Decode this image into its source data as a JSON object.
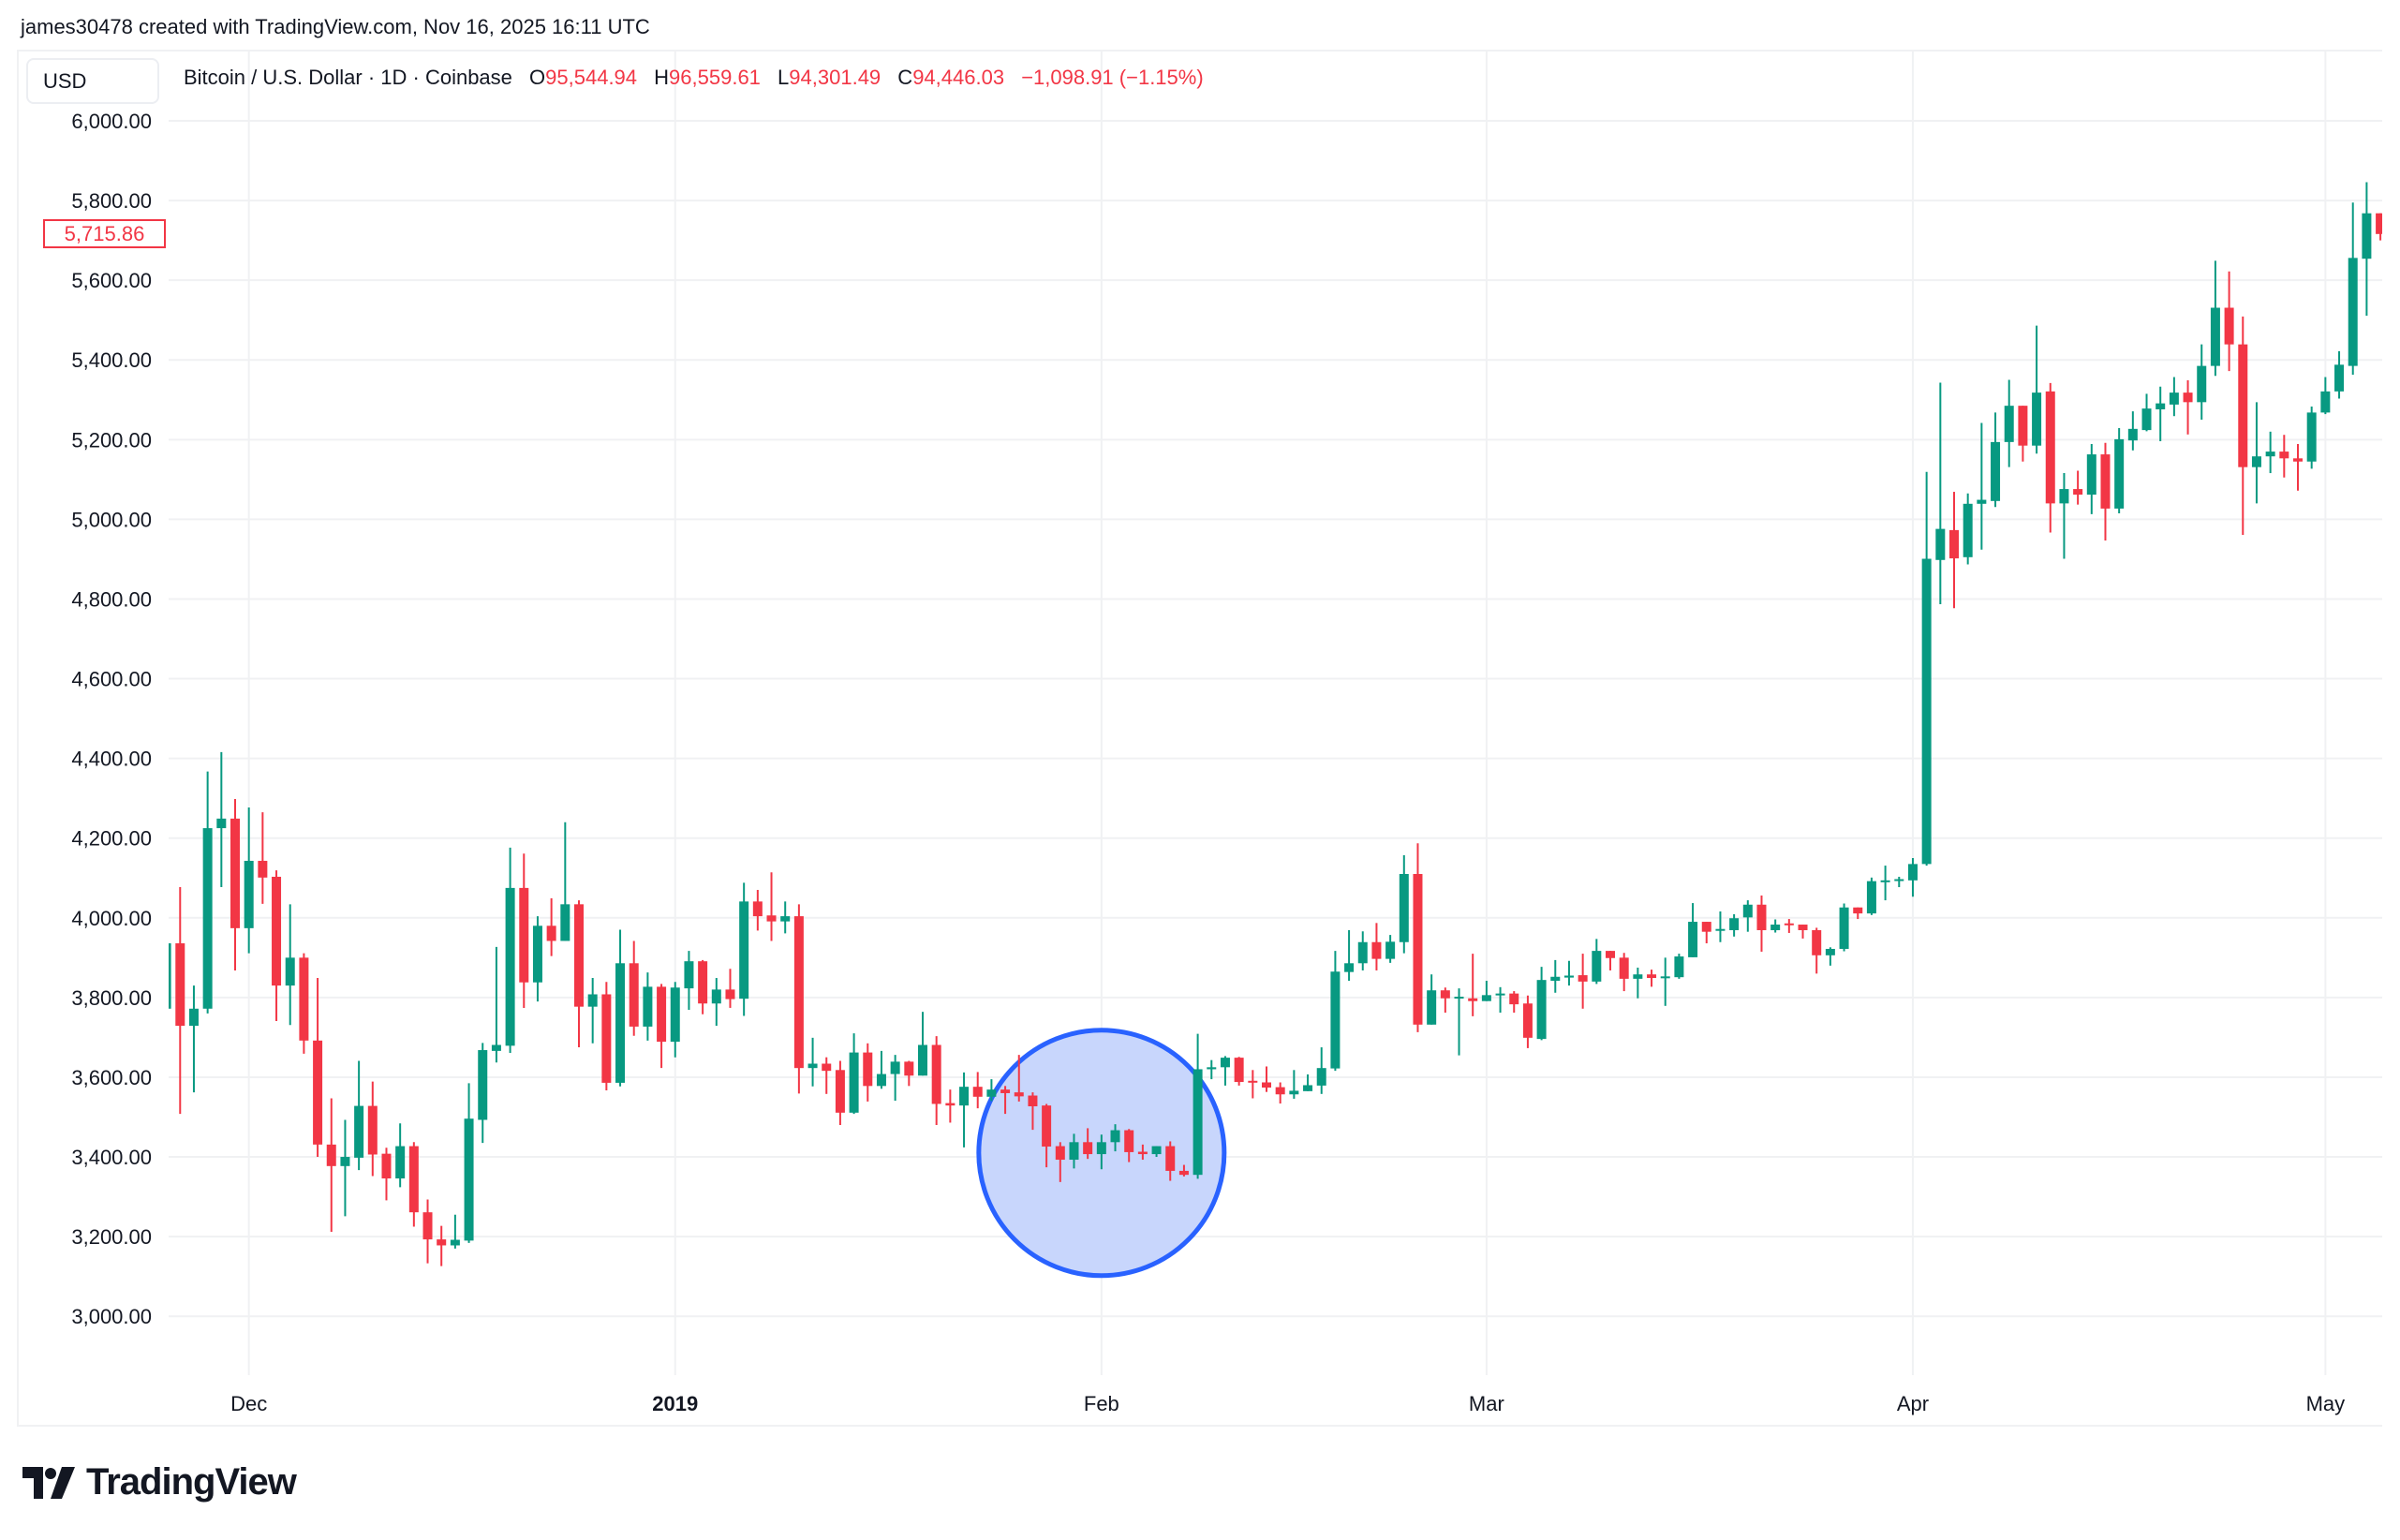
{
  "header": {
    "attribution": "james30478 created with TradingView.com, Nov 16, 2025 16:11 UTC"
  },
  "legend": {
    "currency_button": "USD",
    "title": "Bitcoin / U.S. Dollar · 1D · Coinbase",
    "o_label": "O",
    "o": "95,544.94",
    "h_label": "H",
    "h": "96,559.61",
    "l_label": "L",
    "l": "94,301.49",
    "c_label": "C",
    "c": "94,446.03",
    "change": "−1,098.91 (−1.15%)"
  },
  "price_label": "5,715.86",
  "logo": {
    "text": "TradingView",
    "icon": "tradingview-logo-icon"
  },
  "colors": {
    "up": "#089981",
    "down": "#F23645",
    "highlight_stroke": "#2962FF",
    "highlight_fill": "#C5D4FC",
    "grid": "#F0F1F3"
  },
  "chart_data": {
    "type": "candlestick",
    "title": "",
    "xlabel": "",
    "ylabel": "",
    "grid": true,
    "y_ticks": [
      6000,
      5800,
      5600,
      5400,
      5200,
      5000,
      4800,
      4600,
      4400,
      4200,
      4000,
      3800,
      3600,
      3400,
      3200,
      3000
    ],
    "y_tick_labels": [
      "6,000.00",
      "5,800.00",
      "5,600.00",
      "5,400.00",
      "5,200.00",
      "5,000.00",
      "4,800.00",
      "4,600.00",
      "4,400.00",
      "4,200.00",
      "4,000.00",
      "3,800.00",
      "3,600.00",
      "3,400.00",
      "3,200.00",
      "3,000.00"
    ],
    "x_ticks": [
      {
        "date": "2018-12-01",
        "label": "Dec",
        "bold": false
      },
      {
        "date": "2019-01-01",
        "label": "2019",
        "bold": true
      },
      {
        "date": "2019-02-01",
        "label": "Feb",
        "bold": false
      },
      {
        "date": "2019-03-01",
        "label": "Mar",
        "bold": false
      },
      {
        "date": "2019-04-01",
        "label": "Apr",
        "bold": false
      },
      {
        "date": "2019-05-01",
        "label": "May",
        "bold": false
      }
    ],
    "highlight": {
      "shape": "circle",
      "center_date": "2019-02-01",
      "center_price": 3410
    },
    "columns": [
      "date",
      "open",
      "high",
      "low",
      "close"
    ],
    "candles": [
      [
        "2018-11-25",
        3772,
        3990,
        3760,
        3936
      ],
      [
        "2018-11-26",
        3936,
        4077,
        3508,
        3729
      ],
      [
        "2018-11-27",
        3729,
        3830,
        3562,
        3772
      ],
      [
        "2018-11-28",
        3772,
        4367,
        3760,
        4225
      ],
      [
        "2018-11-29",
        4225,
        4416,
        4077,
        4249
      ],
      [
        "2018-11-30",
        4249,
        4298,
        3868,
        3974
      ],
      [
        "2018-12-01",
        3974,
        4277,
        3911,
        4143
      ],
      [
        "2018-12-02",
        4143,
        4265,
        4035,
        4101
      ],
      [
        "2018-12-03",
        4103,
        4119,
        3741,
        3830
      ],
      [
        "2018-12-04",
        3830,
        4034,
        3731,
        3900
      ],
      [
        "2018-12-05",
        3900,
        3911,
        3659,
        3692
      ],
      [
        "2018-12-06",
        3692,
        3849,
        3400,
        3431
      ],
      [
        "2018-12-07",
        3431,
        3547,
        3212,
        3377
      ],
      [
        "2018-12-08",
        3377,
        3493,
        3251,
        3400
      ],
      [
        "2018-12-09",
        3398,
        3641,
        3367,
        3528
      ],
      [
        "2018-12-10",
        3528,
        3589,
        3352,
        3406
      ],
      [
        "2018-12-11",
        3408,
        3423,
        3291,
        3346
      ],
      [
        "2018-12-12",
        3346,
        3484,
        3324,
        3427
      ],
      [
        "2018-12-13",
        3427,
        3437,
        3225,
        3261
      ],
      [
        "2018-12-14",
        3261,
        3293,
        3133,
        3193
      ],
      [
        "2018-12-15",
        3193,
        3227,
        3126,
        3178
      ],
      [
        "2018-12-16",
        3178,
        3255,
        3170,
        3192
      ],
      [
        "2018-12-17",
        3190,
        3585,
        3184,
        3496
      ],
      [
        "2018-12-18",
        3493,
        3686,
        3435,
        3668
      ],
      [
        "2018-12-19",
        3666,
        3927,
        3637,
        3681
      ],
      [
        "2018-12-20",
        3679,
        4176,
        3661,
        4075
      ],
      [
        "2018-12-21",
        4075,
        4161,
        3774,
        3838
      ],
      [
        "2018-12-22",
        3838,
        4004,
        3790,
        3980
      ],
      [
        "2018-12-23",
        3980,
        4049,
        3904,
        3942
      ],
      [
        "2018-12-24",
        3942,
        4240,
        3942,
        4034
      ],
      [
        "2018-12-25",
        4034,
        4044,
        3675,
        3777
      ],
      [
        "2018-12-26",
        3777,
        3849,
        3685,
        3808
      ],
      [
        "2018-12-27",
        3808,
        3839,
        3567,
        3586
      ],
      [
        "2018-12-28",
        3586,
        3970,
        3577,
        3886
      ],
      [
        "2018-12-29",
        3886,
        3942,
        3704,
        3727
      ],
      [
        "2018-12-30",
        3727,
        3863,
        3692,
        3827
      ],
      [
        "2018-12-31",
        3827,
        3834,
        3623,
        3689
      ],
      [
        "2019-01-01",
        3689,
        3839,
        3650,
        3825
      ],
      [
        "2019-01-02",
        3823,
        3917,
        3769,
        3891
      ],
      [
        "2019-01-03",
        3891,
        3894,
        3758,
        3785
      ],
      [
        "2019-01-04",
        3785,
        3849,
        3729,
        3820
      ],
      [
        "2019-01-05",
        3820,
        3872,
        3774,
        3796
      ],
      [
        "2019-01-06",
        3797,
        4088,
        3754,
        4041
      ],
      [
        "2019-01-07",
        4041,
        4070,
        3968,
        4004
      ],
      [
        "2019-01-08",
        4006,
        4114,
        3942,
        3991
      ],
      [
        "2019-01-09",
        3991,
        4041,
        3961,
        4004
      ],
      [
        "2019-01-10",
        4004,
        4034,
        3559,
        3623
      ],
      [
        "2019-01-11",
        3623,
        3699,
        3577,
        3634
      ],
      [
        "2019-01-12",
        3634,
        3650,
        3558,
        3616
      ],
      [
        "2019-01-13",
        3618,
        3641,
        3480,
        3511
      ],
      [
        "2019-01-14",
        3511,
        3710,
        3508,
        3662
      ],
      [
        "2019-01-15",
        3662,
        3685,
        3539,
        3578
      ],
      [
        "2019-01-16",
        3578,
        3666,
        3571,
        3608
      ],
      [
        "2019-01-17",
        3608,
        3656,
        3541,
        3639
      ],
      [
        "2019-01-18",
        3639,
        3641,
        3578,
        3604
      ],
      [
        "2019-01-19",
        3604,
        3764,
        3604,
        3681
      ],
      [
        "2019-01-20",
        3681,
        3703,
        3480,
        3533
      ],
      [
        "2019-01-21",
        3535,
        3569,
        3486,
        3529
      ],
      [
        "2019-01-22",
        3529,
        3612,
        3424,
        3576
      ],
      [
        "2019-01-23",
        3576,
        3613,
        3522,
        3551
      ],
      [
        "2019-01-24",
        3551,
        3595,
        3540,
        3569
      ],
      [
        "2019-01-25",
        3569,
        3578,
        3508,
        3560
      ],
      [
        "2019-01-26",
        3562,
        3656,
        3539,
        3552
      ],
      [
        "2019-01-27",
        3554,
        3562,
        3468,
        3527
      ],
      [
        "2019-01-28",
        3529,
        3533,
        3374,
        3426
      ],
      [
        "2019-01-29",
        3427,
        3437,
        3337,
        3393
      ],
      [
        "2019-01-30",
        3393,
        3458,
        3371,
        3437
      ],
      [
        "2019-01-31",
        3437,
        3472,
        3395,
        3407
      ],
      [
        "2019-02-01",
        3407,
        3456,
        3369,
        3437
      ],
      [
        "2019-02-02",
        3437,
        3482,
        3414,
        3467
      ],
      [
        "2019-02-03",
        3467,
        3470,
        3387,
        3412
      ],
      [
        "2019-02-04",
        3413,
        3431,
        3393,
        3407
      ],
      [
        "2019-02-05",
        3407,
        3427,
        3400,
        3427
      ],
      [
        "2019-02-06",
        3427,
        3439,
        3340,
        3365
      ],
      [
        "2019-02-07",
        3365,
        3380,
        3351,
        3355
      ],
      [
        "2019-02-08",
        3355,
        3709,
        3345,
        3620
      ],
      [
        "2019-02-09",
        3620,
        3643,
        3595,
        3625
      ],
      [
        "2019-02-10",
        3625,
        3653,
        3579,
        3649
      ],
      [
        "2019-02-11",
        3649,
        3651,
        3579,
        3588
      ],
      [
        "2019-02-12",
        3591,
        3618,
        3547,
        3588
      ],
      [
        "2019-02-13",
        3587,
        3627,
        3563,
        3574
      ],
      [
        "2019-02-14",
        3575,
        3587,
        3534,
        3557
      ],
      [
        "2019-02-15",
        3557,
        3618,
        3546,
        3566
      ],
      [
        "2019-02-16",
        3565,
        3607,
        3565,
        3580
      ],
      [
        "2019-02-17",
        3579,
        3675,
        3558,
        3623
      ],
      [
        "2019-02-18",
        3622,
        3917,
        3616,
        3865
      ],
      [
        "2019-02-19",
        3864,
        3969,
        3842,
        3886
      ],
      [
        "2019-02-20",
        3886,
        3966,
        3868,
        3939
      ],
      [
        "2019-02-21",
        3939,
        3987,
        3868,
        3897
      ],
      [
        "2019-02-22",
        3897,
        3957,
        3887,
        3940
      ],
      [
        "2019-02-23",
        3939,
        4157,
        3911,
        4110
      ],
      [
        "2019-02-24",
        4110,
        4187,
        3713,
        3732
      ],
      [
        "2019-02-25",
        3732,
        3858,
        3732,
        3818
      ],
      [
        "2019-02-26",
        3818,
        3825,
        3762,
        3798
      ],
      [
        "2019-02-27",
        3798,
        3823,
        3655,
        3802
      ],
      [
        "2019-02-28",
        3798,
        3910,
        3753,
        3791
      ],
      [
        "2019-03-01",
        3791,
        3842,
        3791,
        3806
      ],
      [
        "2019-03-02",
        3806,
        3826,
        3762,
        3810
      ],
      [
        "2019-03-03",
        3810,
        3816,
        3762,
        3783
      ],
      [
        "2019-03-04",
        3785,
        3805,
        3673,
        3699
      ],
      [
        "2019-03-05",
        3696,
        3877,
        3693,
        3844
      ],
      [
        "2019-03-06",
        3842,
        3894,
        3812,
        3852
      ],
      [
        "2019-03-07",
        3850,
        3892,
        3830,
        3855
      ],
      [
        "2019-03-08",
        3856,
        3910,
        3772,
        3840
      ],
      [
        "2019-03-09",
        3840,
        3947,
        3834,
        3917
      ],
      [
        "2019-03-10",
        3917,
        3917,
        3868,
        3899
      ],
      [
        "2019-03-11",
        3900,
        3912,
        3816,
        3847
      ],
      [
        "2019-03-12",
        3847,
        3875,
        3798,
        3858
      ],
      [
        "2019-03-13",
        3858,
        3870,
        3827,
        3849
      ],
      [
        "2019-03-14",
        3849,
        3900,
        3779,
        3853
      ],
      [
        "2019-03-15",
        3851,
        3910,
        3847,
        3903
      ],
      [
        "2019-03-16",
        3901,
        4037,
        3901,
        3990
      ],
      [
        "2019-03-17",
        3990,
        3990,
        3936,
        3965
      ],
      [
        "2019-03-18",
        3968,
        4016,
        3939,
        3972
      ],
      [
        "2019-03-19",
        3969,
        4009,
        3953,
        3999
      ],
      [
        "2019-03-20",
        4001,
        4044,
        3965,
        4033
      ],
      [
        "2019-03-21",
        4033,
        4056,
        3915,
        3969
      ],
      [
        "2019-03-22",
        3969,
        3996,
        3963,
        3983
      ],
      [
        "2019-03-23",
        3986,
        3997,
        3962,
        3983
      ],
      [
        "2019-03-24",
        3983,
        3983,
        3948,
        3969
      ],
      [
        "2019-03-25",
        3969,
        3975,
        3860,
        3906
      ],
      [
        "2019-03-26",
        3906,
        3926,
        3880,
        3922
      ],
      [
        "2019-03-27",
        3922,
        4036,
        3916,
        4026
      ],
      [
        "2019-03-28",
        4026,
        4026,
        3997,
        4011
      ],
      [
        "2019-03-29",
        4011,
        4101,
        4007,
        4092
      ],
      [
        "2019-03-30",
        4092,
        4131,
        4044,
        4094
      ],
      [
        "2019-03-31",
        4094,
        4103,
        4077,
        4097
      ],
      [
        "2019-04-01",
        4094,
        4150,
        4053,
        4135
      ],
      [
        "2019-04-02",
        4135,
        5119,
        4131,
        4901
      ],
      [
        "2019-04-03",
        4898,
        5343,
        4787,
        4976
      ],
      [
        "2019-04-04",
        4973,
        5069,
        4777,
        4902
      ],
      [
        "2019-04-05",
        4905,
        5065,
        4887,
        5039
      ],
      [
        "2019-04-06",
        5039,
        5242,
        4924,
        5049
      ],
      [
        "2019-04-07",
        5046,
        5268,
        5031,
        5194
      ],
      [
        "2019-04-08",
        5194,
        5350,
        5131,
        5285
      ],
      [
        "2019-04-09",
        5285,
        5285,
        5145,
        5185
      ],
      [
        "2019-04-10",
        5185,
        5486,
        5165,
        5318
      ],
      [
        "2019-04-11",
        5321,
        5342,
        4967,
        5040
      ],
      [
        "2019-04-12",
        5040,
        5116,
        4901,
        5076
      ],
      [
        "2019-04-13",
        5076,
        5122,
        5037,
        5062
      ],
      [
        "2019-04-14",
        5062,
        5189,
        5013,
        5163
      ],
      [
        "2019-04-15",
        5163,
        5192,
        4947,
        5027
      ],
      [
        "2019-04-16",
        5027,
        5229,
        5015,
        5201
      ],
      [
        "2019-04-17",
        5198,
        5271,
        5173,
        5227
      ],
      [
        "2019-04-18",
        5224,
        5315,
        5221,
        5278
      ],
      [
        "2019-04-19",
        5276,
        5333,
        5196,
        5291
      ],
      [
        "2019-04-20",
        5288,
        5357,
        5259,
        5318
      ],
      [
        "2019-04-21",
        5318,
        5349,
        5213,
        5294
      ],
      [
        "2019-04-22",
        5294,
        5439,
        5250,
        5385
      ],
      [
        "2019-04-23",
        5385,
        5649,
        5360,
        5531
      ],
      [
        "2019-04-24",
        5531,
        5622,
        5372,
        5439
      ],
      [
        "2019-04-25",
        5439,
        5509,
        4961,
        5131
      ],
      [
        "2019-04-26",
        5131,
        5294,
        5040,
        5158
      ],
      [
        "2019-04-27",
        5158,
        5220,
        5116,
        5170
      ],
      [
        "2019-04-28",
        5170,
        5212,
        5105,
        5153
      ],
      [
        "2019-04-29",
        5153,
        5189,
        5072,
        5145
      ],
      [
        "2019-04-30",
        5145,
        5283,
        5127,
        5268
      ],
      [
        "2019-05-01",
        5268,
        5357,
        5264,
        5321
      ],
      [
        "2019-05-02",
        5321,
        5422,
        5303,
        5388
      ],
      [
        "2019-05-03",
        5385,
        5795,
        5363,
        5656
      ],
      [
        "2019-05-04",
        5654,
        5846,
        5511,
        5768
      ],
      [
        "2019-05-05",
        5768,
        5768,
        5700,
        5716
      ]
    ]
  }
}
